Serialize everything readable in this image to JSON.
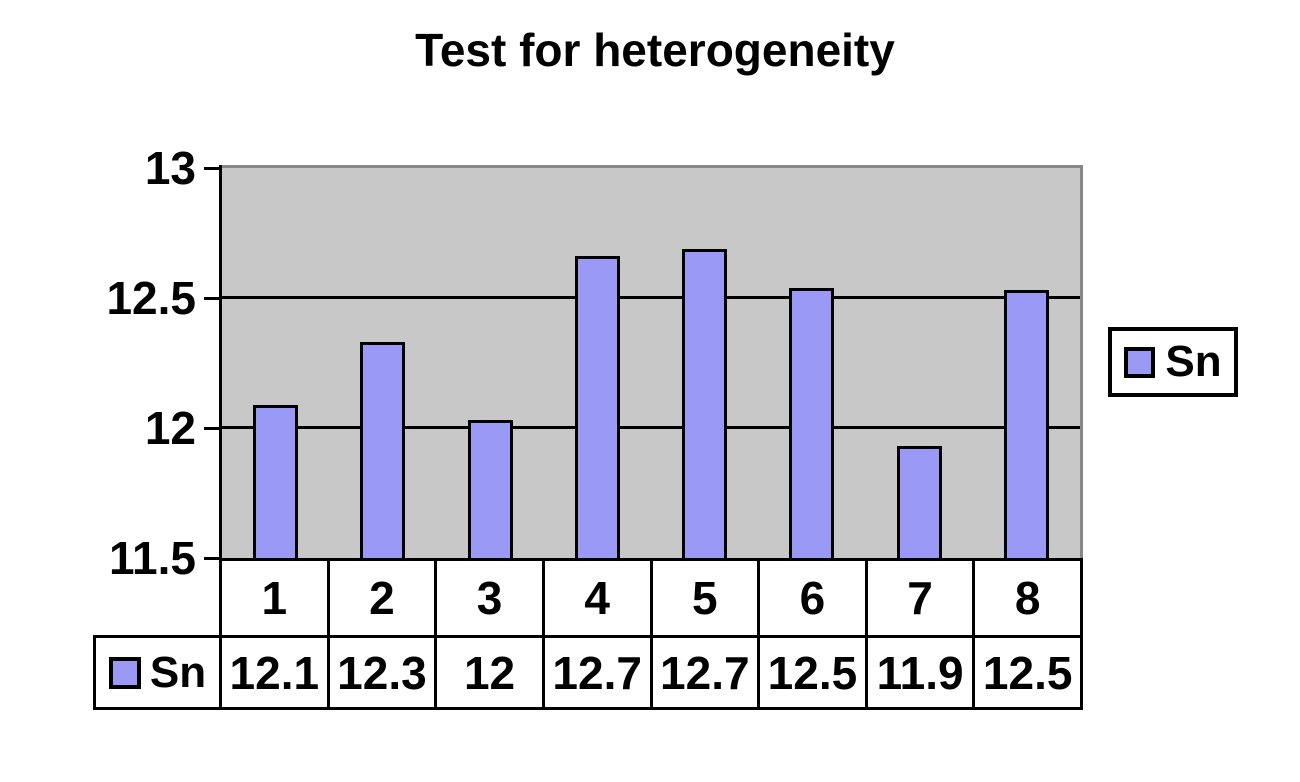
{
  "title": "Test for heterogeneity",
  "legend": {
    "label": "Sn"
  },
  "chart_data": {
    "type": "bar",
    "title": "Test for heterogeneity",
    "categories": [
      "1",
      "2",
      "3",
      "4",
      "5",
      "6",
      "7",
      "8"
    ],
    "series": [
      {
        "name": "Sn",
        "values": [
          12.1,
          12.3,
          12,
          12.7,
          12.7,
          12.5,
          11.9,
          12.5
        ]
      }
    ],
    "plotted_values": [
      12.09,
      12.33,
      12.03,
      12.66,
      12.69,
      12.54,
      11.93,
      12.53
    ],
    "xlabel": "",
    "ylabel": "",
    "ylim": [
      11.5,
      13
    ],
    "yticks": [
      13,
      12.5,
      12,
      11.5
    ],
    "ytick_labels": [
      "13",
      "12.5",
      "12",
      "11.5"
    ],
    "grid": true,
    "legend_position": "right",
    "data_table": {
      "row_header": "Sn",
      "values": [
        "12.1",
        "12.3",
        "12",
        "12.7",
        "12.7",
        "12.5",
        "11.9",
        "12.5"
      ]
    },
    "colors": {
      "bar_fill": "#9A99F5",
      "bar_border": "#000000",
      "plot_background": "#C8C8C8",
      "plot_border_gray": "#878787",
      "gridline": "#000000",
      "page_background": "#FFFFFF",
      "text": "#000000"
    }
  }
}
